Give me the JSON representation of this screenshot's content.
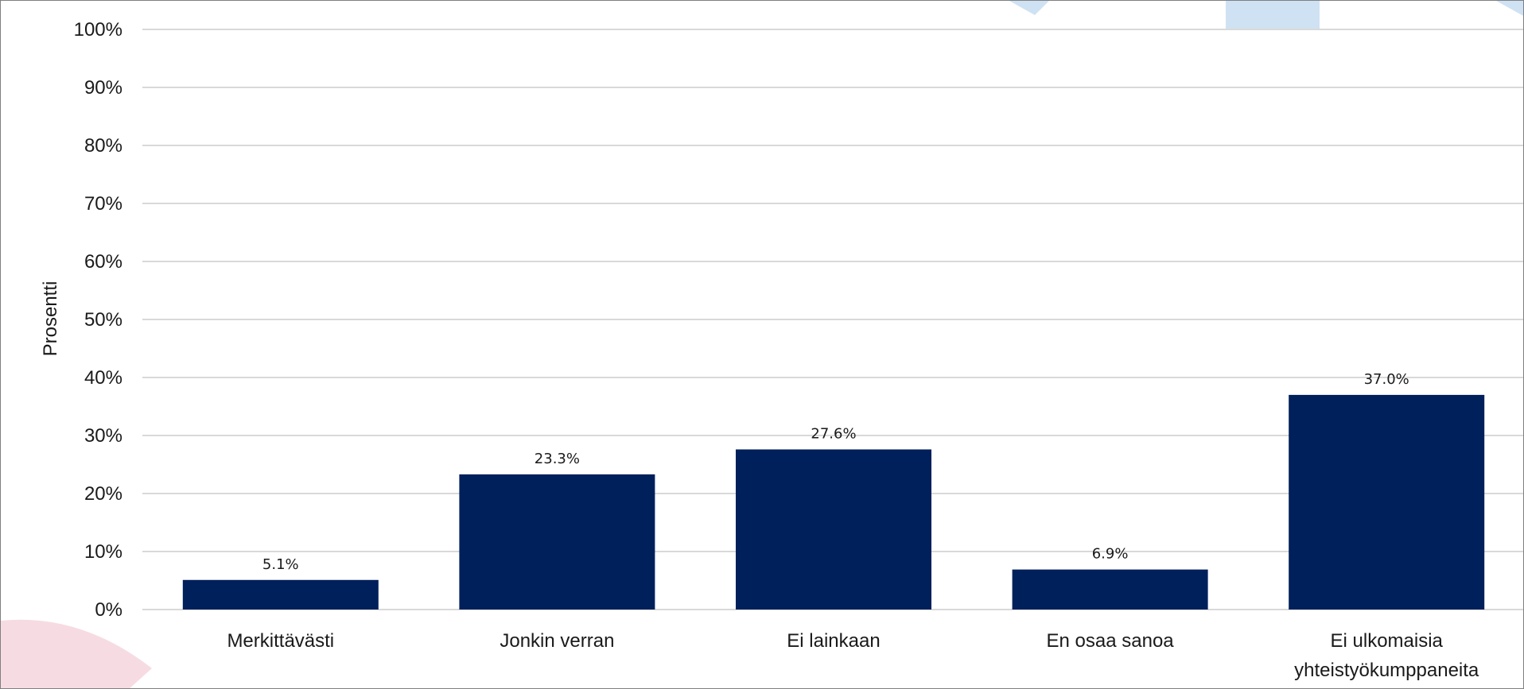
{
  "colors": {
    "bar": "#00205b",
    "grid": "#d9d9d9",
    "frame": "#7f7f7f",
    "deco_blue": "#cfe2f3",
    "deco_pink": "#f6dce2"
  },
  "chart_data": {
    "type": "bar",
    "title": "",
    "xlabel": "",
    "ylabel": "Prosentti",
    "ylim": [
      0,
      100
    ],
    "yticks": [
      "0%",
      "10%",
      "20%",
      "30%",
      "40%",
      "50%",
      "60%",
      "70%",
      "80%",
      "90%",
      "100%"
    ],
    "grid": true,
    "legend": "none",
    "categories": [
      [
        "Merkittävästi"
      ],
      [
        "Jonkin verran"
      ],
      [
        "Ei lainkaan"
      ],
      [
        "En osaa sanoa"
      ],
      [
        "Ei ulkomaisia",
        "yhteistyökumppaneita"
      ]
    ],
    "values": [
      5.1,
      23.3,
      27.6,
      6.9,
      37.0
    ],
    "data_labels": [
      "5.1%",
      "23.3%",
      "27.6%",
      "6.9%",
      "37.0%"
    ]
  }
}
